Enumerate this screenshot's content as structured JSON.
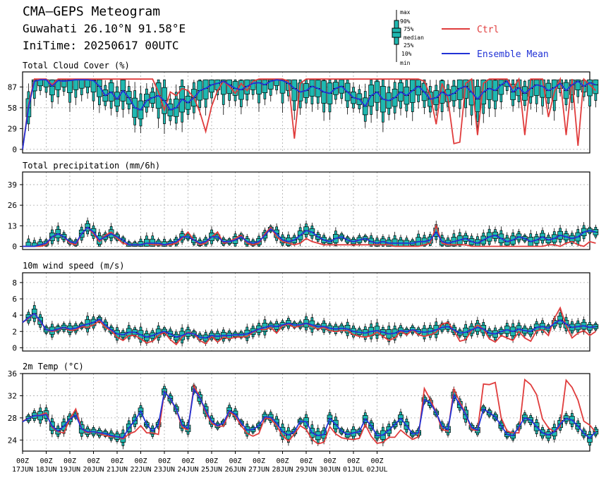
{
  "header": {
    "title": "CMA—GEPS Meteogram",
    "location": "Guwahati 26.10°N 91.58°E",
    "init_time": "IniTime: 20250617 00UTC"
  },
  "legend": {
    "box_labels": [
      "max",
      "90%",
      "75%",
      "median",
      "25%",
      "10%",
      "min"
    ],
    "ctrl_label": "Ctrl",
    "mean_label": "Ensemble Mean",
    "ctrl_color": "#e03c3c",
    "mean_color": "#2233d6",
    "box_color": "#1fb8b0"
  },
  "x_axis": {
    "hour_label": "00Z",
    "date_labels": [
      "17JUN",
      "18JUN",
      "19JUN",
      "20JUN",
      "21JUN",
      "22JUN",
      "23JUN",
      "24JUN",
      "25JUN",
      "26JUN",
      "27JUN",
      "28JUN",
      "29JUN",
      "30JUN",
      "01JUL",
      "02JUL"
    ]
  },
  "chart_data": [
    {
      "type": "box",
      "title": "Total Cloud Cover (%)",
      "ylim": [
        -5,
        108
      ],
      "yticks": [
        0,
        29,
        58,
        87
      ],
      "x_start": "2025-06-17 00Z",
      "x_step": "6h",
      "ctrl": [
        0,
        62,
        98,
        98,
        98,
        90,
        98,
        98,
        98,
        98,
        98,
        98,
        98,
        98,
        98,
        98,
        98,
        98,
        98,
        98,
        98,
        98,
        98,
        80,
        55,
        80,
        75,
        85,
        82,
        72,
        52,
        25,
        60,
        82,
        95,
        88,
        78,
        92,
        82,
        95,
        98,
        98,
        98,
        98,
        98,
        95,
        15,
        92,
        98,
        98,
        98,
        98,
        98,
        98,
        98,
        98,
        98,
        98,
        98,
        98,
        98,
        98,
        98,
        98,
        98,
        98,
        98,
        98,
        95,
        75,
        35,
        92,
        70,
        8,
        10,
        92,
        98,
        20,
        92,
        98,
        98,
        98,
        98,
        85,
        98,
        20,
        98,
        98,
        98,
        45,
        80,
        98,
        20,
        98,
        5,
        98,
        90,
        82
      ],
      "mean": [
        0,
        58,
        95,
        97,
        97,
        88,
        96,
        95,
        96,
        97,
        97,
        97,
        96,
        88,
        75,
        80,
        70,
        82,
        72,
        58,
        55,
        68,
        72,
        75,
        68,
        55,
        58,
        70,
        65,
        72,
        82,
        85,
        90,
        92,
        95,
        90,
        85,
        83,
        88,
        92,
        93,
        90,
        95,
        97,
        96,
        92,
        85,
        80,
        82,
        88,
        85,
        80,
        78,
        85,
        88,
        80,
        72,
        70,
        60,
        75,
        80,
        70,
        68,
        72,
        80,
        75,
        82,
        88,
        80,
        70,
        72,
        80,
        75,
        78,
        85,
        88,
        80,
        70,
        80,
        85,
        82,
        90,
        95,
        80,
        86,
        78,
        85,
        90,
        88,
        82,
        86,
        92,
        82,
        90,
        95,
        88,
        93,
        90
      ]
    },
    {
      "type": "box",
      "title": "Total precipitation (mm/6h)",
      "ylim": [
        -2,
        47
      ],
      "yticks": [
        0,
        13,
        26,
        39
      ],
      "x_start": "2025-06-17 00Z",
      "x_step": "6h",
      "ctrl": [
        0,
        0,
        0,
        0,
        1,
        6,
        8,
        6,
        2,
        1,
        8,
        12,
        8,
        3,
        7,
        9,
        5,
        2,
        1,
        1,
        1,
        2,
        1,
        1,
        1,
        1,
        2,
        5,
        9,
        4,
        1,
        2,
        6,
        9,
        2,
        3,
        5,
        7,
        2,
        1,
        2,
        8,
        12,
        6,
        3,
        2,
        1,
        2,
        5,
        3,
        2,
        1,
        1,
        1,
        1,
        1,
        1,
        1,
        1,
        1,
        1,
        1,
        1,
        0,
        0,
        0,
        0,
        0,
        1,
        2,
        13,
        2,
        1,
        1,
        1,
        1,
        0,
        0,
        0,
        0,
        0,
        0,
        0,
        0,
        0,
        0,
        0,
        0,
        0,
        1,
        1,
        0,
        2,
        3,
        1,
        0,
        3,
        2
      ],
      "mean": [
        0,
        0,
        0,
        1,
        2,
        6,
        8,
        6,
        3,
        2,
        8,
        12,
        9,
        4,
        6,
        8,
        6,
        4,
        1,
        1,
        1,
        2,
        2,
        2,
        1,
        2,
        3,
        6,
        6,
        4,
        2,
        3,
        6,
        6,
        3,
        3,
        4,
        6,
        3,
        2,
        3,
        7,
        11,
        8,
        4,
        3,
        4,
        7,
        10,
        9,
        6,
        4,
        3,
        5,
        6,
        4,
        3,
        4,
        5,
        3,
        2,
        3,
        2,
        2,
        2,
        2,
        2,
        3,
        3,
        4,
        9,
        3,
        2,
        3,
        4,
        5,
        3,
        2,
        4,
        6,
        7,
        5,
        3,
        4,
        6,
        5,
        3,
        4,
        6,
        4,
        5,
        7,
        6,
        5,
        6,
        9,
        10,
        9
      ]
    },
    {
      "type": "box",
      "title": "10m wind speed (m/s)",
      "ylim": [
        -0.4,
        9.2
      ],
      "yticks": [
        0,
        2,
        4,
        6,
        8
      ],
      "x_start": "2025-06-17 00Z",
      "x_step": "6h",
      "ctrl": [
        3.1,
        3.6,
        4.2,
        3.2,
        2.2,
        2.0,
        2.2,
        2.5,
        2.1,
        2.2,
        2.6,
        2.5,
        2.8,
        3.3,
        2.5,
        2.1,
        1.3,
        0.9,
        1.5,
        1.5,
        1.1,
        0.6,
        0.8,
        1.5,
        1.9,
        1.0,
        0.4,
        1.3,
        1.9,
        1.7,
        0.9,
        0.5,
        1.4,
        0.7,
        1.3,
        1.1,
        1.3,
        1.3,
        1.4,
        1.9,
        2.3,
        2.2,
        2.5,
        1.8,
        2.7,
        2.9,
        2.5,
        2.7,
        3.0,
        2.6,
        2.3,
        2.5,
        2.1,
        2.0,
        2.1,
        2.1,
        1.6,
        1.4,
        1.3,
        1.5,
        1.9,
        1.4,
        0.9,
        1.2,
        2.0,
        1.6,
        2.2,
        1.6,
        1.4,
        1.6,
        1.9,
        2.9,
        3.1,
        2.1,
        0.8,
        1.0,
        2.1,
        2.8,
        2.3,
        1.1,
        0.7,
        1.5,
        1.2,
        0.9,
        2.0,
        1.2,
        0.8,
        2.1,
        2.2,
        1.5,
        3.6,
        4.9,
        2.7,
        1.2,
        1.8,
        2.1,
        1.5,
        2.0
      ],
      "mean": [
        3.1,
        3.7,
        4.2,
        3.3,
        2.2,
        2.1,
        2.3,
        2.5,
        2.3,
        2.4,
        2.7,
        2.9,
        3.1,
        3.5,
        2.8,
        2.2,
        1.7,
        1.6,
        1.9,
        1.9,
        1.6,
        1.3,
        1.5,
        1.8,
        2.0,
        1.7,
        1.3,
        1.5,
        1.8,
        1.7,
        1.3,
        1.2,
        1.5,
        1.4,
        1.5,
        1.5,
        1.6,
        1.6,
        1.7,
        2.0,
        2.3,
        2.5,
        2.7,
        2.6,
        2.8,
        3.0,
        2.8,
        2.8,
        3.0,
        2.8,
        2.6,
        2.6,
        2.4,
        2.3,
        2.4,
        2.3,
        2.0,
        1.9,
        1.8,
        2.0,
        2.1,
        1.9,
        1.7,
        1.8,
        2.1,
        2.0,
        2.2,
        2.0,
        1.9,
        2.0,
        2.2,
        2.5,
        2.6,
        2.2,
        1.8,
        1.9,
        2.2,
        2.5,
        2.3,
        1.8,
        1.7,
        2.0,
        2.2,
        2.0,
        2.3,
        2.1,
        2.0,
        2.5,
        2.6,
        2.4,
        3.0,
        3.4,
        2.9,
        2.5,
        2.6,
        2.7,
        2.5,
        2.6
      ]
    },
    {
      "type": "box",
      "title": "2m Temp (°C)",
      "ylim": [
        22.0,
        36.0
      ],
      "yticks": [
        24,
        28,
        32,
        36
      ],
      "x_start": "2025-06-17 00Z",
      "x_step": "6h",
      "ctrl": [
        27.4,
        27.9,
        28.4,
        28.5,
        28.9,
        26.3,
        25.5,
        25.3,
        27.8,
        29.6,
        26.0,
        25.3,
        25.5,
        25.2,
        24.8,
        24.6,
        24.6,
        24.2,
        25.1,
        25.5,
        26.6,
        25.3,
        25.3,
        25.0,
        32.8,
        31.4,
        29.5,
        26.3,
        25.8,
        33.8,
        31.7,
        29.0,
        27.0,
        26.5,
        26.5,
        29.1,
        28.3,
        26.6,
        25.2,
        24.7,
        25.2,
        28.0,
        27.8,
        26.6,
        24.8,
        23.8,
        25.1,
        26.6,
        25.9,
        24.1,
        23.3,
        23.6,
        26.4,
        25.1,
        24.4,
        24.2,
        24.1,
        24.3,
        26.8,
        24.7,
        23.4,
        23.6,
        24.5,
        24.5,
        25.8,
        24.9,
        24.1,
        24.6,
        33.3,
        31.3,
        29.0,
        25.9,
        25.6,
        33.2,
        30.9,
        28.7,
        25.9,
        25.7,
        34.1,
        34.0,
        34.4,
        28.0,
        25.6,
        25.3,
        25.3,
        34.9,
        34.0,
        32.2,
        27.8,
        26.2,
        25.5,
        26.4,
        34.8,
        33.5,
        31.2,
        27.4,
        26.7,
        25.4
      ],
      "mean": [
        27.3,
        27.9,
        28.4,
        28.4,
        28.6,
        26.5,
        25.6,
        26.5,
        27.8,
        28.5,
        26.0,
        25.5,
        25.5,
        25.3,
        25.2,
        24.8,
        24.6,
        24.4,
        26.2,
        27.5,
        29.2,
        26.8,
        25.6,
        26.8,
        32.7,
        31.5,
        29.6,
        26.7,
        26.1,
        33.2,
        31.6,
        29.4,
        27.4,
        26.6,
        27.1,
        29.3,
        28.7,
        27.1,
        25.8,
        25.9,
        26.6,
        28.2,
        28.1,
        27.1,
        25.5,
        24.9,
        25.5,
        27.4,
        27.3,
        25.3,
        24.8,
        25.0,
        27.9,
        26.8,
        25.6,
        25.0,
        25.3,
        25.5,
        27.8,
        26.6,
        24.8,
        24.9,
        25.8,
        26.8,
        27.9,
        26.6,
        25.1,
        25.3,
        31.3,
        30.7,
        28.9,
        26.5,
        25.9,
        32.1,
        30.4,
        28.6,
        26.3,
        25.8,
        29.6,
        28.9,
        28.2,
        26.6,
        25.0,
        24.8,
        26.4,
        28.0,
        27.6,
        26.4,
        25.3,
        24.9,
        25.5,
        26.9,
        27.9,
        27.6,
        26.5,
        25.2,
        24.3,
        25.5
      ]
    }
  ]
}
